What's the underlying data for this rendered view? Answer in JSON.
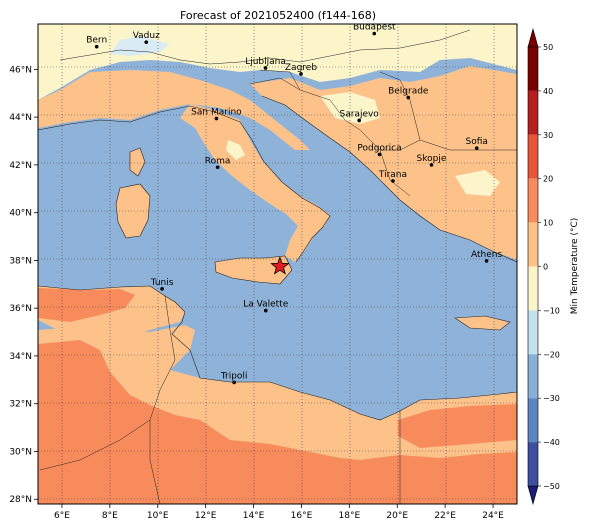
{
  "title": "Forecast of 2021052400 (f144-168)",
  "colorbar_label": "Min Temperature (°C)",
  "colorbar_ticks": [
    "−50",
    "−40",
    "−30",
    "−20",
    "−10",
    "0",
    "10",
    "20",
    "30",
    "40",
    "50"
  ],
  "colorbar_colors": [
    "#1b1b7a",
    "#3e4fa0",
    "#5b86bf",
    "#88b0d6",
    "#c4e2ee",
    "#fbf5c9",
    "#fdc28a",
    "#f88b5c",
    "#e6553a",
    "#b61f1f",
    "#7a0000"
  ],
  "x_ticks": [
    "6°E",
    "8°E",
    "10°E",
    "12°E",
    "14°E",
    "16°E",
    "18°E",
    "20°E",
    "22°E",
    "24°E"
  ],
  "y_ticks": [
    "28°N",
    "30°N",
    "32°N",
    "34°N",
    "36°N",
    "38°N",
    "40°N",
    "42°N",
    "44°N",
    "46°N"
  ],
  "cities": [
    {
      "name": "Bern",
      "lon": 7.45,
      "lat": 46.95
    },
    {
      "name": "Vaduz",
      "lon": 9.52,
      "lat": 47.14
    },
    {
      "name": "Budapest",
      "lon": 19.04,
      "lat": 47.5
    },
    {
      "name": "Ljubljana",
      "lon": 14.5,
      "lat": 46.06
    },
    {
      "name": "Zagreb",
      "lon": 15.98,
      "lat": 45.81
    },
    {
      "name": "Belgrade",
      "lon": 20.46,
      "lat": 44.82
    },
    {
      "name": "San Marino",
      "lon": 12.45,
      "lat": 43.94
    },
    {
      "name": "Sarajevo",
      "lon": 18.41,
      "lat": 43.86
    },
    {
      "name": "Sofia",
      "lon": 23.32,
      "lat": 42.7
    },
    {
      "name": "Roma",
      "lon": 12.5,
      "lat": 41.9
    },
    {
      "name": "Podgorica",
      "lon": 19.26,
      "lat": 42.44
    },
    {
      "name": "Skopje",
      "lon": 21.43,
      "lat": 42.0
    },
    {
      "name": "Tirana",
      "lon": 19.82,
      "lat": 41.33
    },
    {
      "name": "Athens",
      "lon": 23.73,
      "lat": 37.98
    },
    {
      "name": "Tunis",
      "lon": 10.18,
      "lat": 36.81
    },
    {
      "name": "La Valette",
      "lon": 14.51,
      "lat": 35.9
    },
    {
      "name": "Tripoli",
      "lon": 13.19,
      "lat": 32.89
    }
  ],
  "marker": {
    "type": "star",
    "lon": 15.1,
    "lat": 37.75,
    "color": "#e02020"
  },
  "extent": {
    "lon": [
      5,
      25
    ],
    "lat": [
      27.8,
      47.9
    ]
  },
  "colors": {
    "sea": "#8fb3d8",
    "warm": "#fdc28a",
    "hot": "#f88b5c",
    "mild": "#fbf5c9",
    "cool": "#d9ecf4"
  }
}
